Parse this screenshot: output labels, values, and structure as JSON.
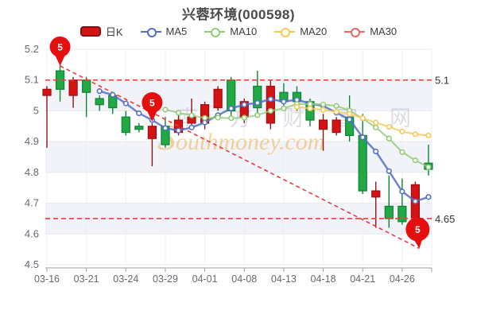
{
  "title": "兴蓉环境(000598)",
  "legend": [
    {
      "label": "日K",
      "type": "candle",
      "color": "#d21414",
      "border": "#8f0b0b"
    },
    {
      "label": "MA5",
      "type": "line",
      "color": "#5470c6"
    },
    {
      "label": "MA10",
      "type": "line",
      "color": "#91cc75"
    },
    {
      "label": "MA20",
      "type": "line",
      "color": "#fac858"
    },
    {
      "label": "MA30",
      "type": "line",
      "color": "#ee6666"
    }
  ],
  "watermark": {
    "line1": "南方财富网",
    "line2": "Southmoney.com"
  },
  "chart_data": {
    "type": "candlestick",
    "ylim": [
      4.5,
      5.2
    ],
    "y_axis_labels": [
      "5.2",
      "5.1",
      "5",
      "4.9",
      "4.8",
      "4.7",
      "4.6",
      "4.5"
    ],
    "y_ticks": [
      5.2,
      5.1,
      5.0,
      4.9,
      4.8,
      4.7,
      4.6,
      4.5
    ],
    "x_labels": [
      "03-16",
      "03-21",
      "03-24",
      "03-29",
      "04-01",
      "04-08",
      "04-13",
      "04-18",
      "04-21",
      "04-26"
    ],
    "label_indices": [
      0,
      3,
      6,
      9,
      12,
      15,
      18,
      21,
      24,
      27
    ],
    "up_color": "#d21414",
    "up_border": "#a00d0d",
    "up_wick": "#8c1616",
    "down_color": "#22a845",
    "down_border": "#0d8334",
    "down_wick": "#0d8334",
    "candles": [
      {
        "date": "03-16",
        "o": 5.05,
        "h": 5.08,
        "l": 4.88,
        "c": 5.07
      },
      {
        "date": "03-17",
        "o": 5.13,
        "h": 5.15,
        "l": 5.03,
        "c": 5.07
      },
      {
        "date": "03-18",
        "o": 5.05,
        "h": 5.11,
        "l": 5.01,
        "c": 5.1
      },
      {
        "date": "03-21",
        "o": 5.1,
        "h": 5.11,
        "l": 4.98,
        "c": 5.06
      },
      {
        "date": "03-22",
        "o": 5.04,
        "h": 5.05,
        "l": 5.0,
        "c": 5.02
      },
      {
        "date": "03-23",
        "o": 5.05,
        "h": 5.06,
        "l": 4.99,
        "c": 5.01
      },
      {
        "date": "03-24",
        "o": 4.98,
        "h": 5.0,
        "l": 4.92,
        "c": 4.93
      },
      {
        "date": "03-25",
        "o": 4.95,
        "h": 4.96,
        "l": 4.93,
        "c": 4.94
      },
      {
        "date": "03-28",
        "o": 4.91,
        "h": 4.96,
        "l": 4.82,
        "c": 4.95
      },
      {
        "date": "03-29",
        "o": 4.95,
        "h": 4.98,
        "l": 4.88,
        "c": 4.89
      },
      {
        "date": "03-30",
        "o": 4.93,
        "h": 5.0,
        "l": 4.92,
        "c": 4.97
      },
      {
        "date": "03-31",
        "o": 4.96,
        "h": 5.04,
        "l": 4.95,
        "c": 4.98
      },
      {
        "date": "04-01",
        "o": 4.96,
        "h": 5.03,
        "l": 4.94,
        "c": 5.02
      },
      {
        "date": "04-06",
        "o": 5.01,
        "h": 5.08,
        "l": 5.0,
        "c": 5.07
      },
      {
        "date": "04-07",
        "o": 5.1,
        "h": 5.11,
        "l": 4.98,
        "c": 5.0
      },
      {
        "date": "04-08",
        "o": 4.98,
        "h": 5.04,
        "l": 4.96,
        "c": 5.03
      },
      {
        "date": "04-11",
        "o": 5.08,
        "h": 5.13,
        "l": 4.98,
        "c": 5.01
      },
      {
        "date": "04-12",
        "o": 4.96,
        "h": 5.1,
        "l": 4.94,
        "c": 5.08
      },
      {
        "date": "04-13",
        "o": 5.06,
        "h": 5.09,
        "l": 5.0,
        "c": 5.03
      },
      {
        "date": "04-14",
        "o": 5.06,
        "h": 5.08,
        "l": 5.0,
        "c": 5.03
      },
      {
        "date": "04-15",
        "o": 5.03,
        "h": 5.04,
        "l": 4.95,
        "c": 4.97
      },
      {
        "date": "04-18",
        "o": 4.94,
        "h": 4.99,
        "l": 4.87,
        "c": 4.97
      },
      {
        "date": "04-19",
        "o": 4.93,
        "h": 4.98,
        "l": 4.92,
        "c": 4.97
      },
      {
        "date": "04-20",
        "o": 4.98,
        "h": 5.05,
        "l": 4.9,
        "c": 4.92
      },
      {
        "date": "04-21",
        "o": 4.92,
        "h": 4.99,
        "l": 4.73,
        "c": 4.74
      },
      {
        "date": "04-22",
        "o": 4.72,
        "h": 4.77,
        "l": 4.62,
        "c": 4.74
      },
      {
        "date": "04-25",
        "o": 4.69,
        "h": 4.79,
        "l": 4.62,
        "c": 4.65
      },
      {
        "date": "04-26",
        "o": 4.69,
        "h": 4.78,
        "l": 4.63,
        "c": 4.64
      },
      {
        "date": "04-27",
        "o": 4.65,
        "h": 4.77,
        "l": 4.6,
        "c": 4.76
      },
      {
        "date": "04-28",
        "o": 4.83,
        "h": 4.89,
        "l": 4.79,
        "c": 4.81
      }
    ],
    "series": [
      {
        "name": "MA5",
        "color": "#5470c6",
        "width": 2.5,
        "values": [
          null,
          null,
          null,
          null,
          5.064,
          5.052,
          5.024,
          4.992,
          4.97,
          4.944,
          4.936,
          4.946,
          4.962,
          4.986,
          5.008,
          5.02,
          5.026,
          5.038,
          5.03,
          5.036,
          5.024,
          5.016,
          4.994,
          4.972,
          4.914,
          4.868,
          4.804,
          4.738,
          4.706,
          4.72
        ]
      },
      {
        "name": "MA10",
        "color": "#91cc75",
        "width": 2,
        "values": [
          null,
          null,
          null,
          null,
          null,
          null,
          null,
          null,
          null,
          5.004,
          4.994,
          4.985,
          4.977,
          4.978,
          4.976,
          4.978,
          4.986,
          5.0,
          5.008,
          5.022,
          5.022,
          5.021,
          5.016,
          5.001,
          4.975,
          4.946,
          4.91,
          4.866,
          4.839,
          4.817
        ]
      },
      {
        "name": "MA20",
        "color": "#fac858",
        "width": 2,
        "values": [
          null,
          null,
          null,
          null,
          null,
          null,
          null,
          null,
          null,
          null,
          null,
          null,
          null,
          null,
          null,
          null,
          null,
          null,
          null,
          5.013,
          5.008,
          5.003,
          4.997,
          4.99,
          4.976,
          4.962,
          4.948,
          4.933,
          4.924,
          4.92
        ]
      },
      {
        "name": "MA30",
        "color": "#ee6666",
        "width": 2,
        "values": [
          null,
          null,
          null,
          null,
          null,
          null,
          null,
          null,
          null,
          null,
          null,
          null,
          null,
          null,
          null,
          null,
          null,
          null,
          null,
          null,
          null,
          null,
          null,
          null,
          null,
          null,
          null,
          null,
          null,
          null
        ]
      }
    ],
    "ref_lines": [
      {
        "price": 5.1,
        "label": "5.1"
      },
      {
        "price": 4.65,
        "label": "4.65"
      }
    ],
    "trend_line": {
      "x1_index": 1,
      "y1_price": 5.146,
      "x2_index": 28.3,
      "y2_price": 4.553
    },
    "markers": [
      {
        "label": "5",
        "tip_index": 1,
        "tip_price": 5.146,
        "r": 13,
        "dx": 0
      },
      {
        "label": "5",
        "tip_index": 8,
        "tip_price": 4.965,
        "r": 13,
        "dx": 0
      },
      {
        "label": "5",
        "tip_index": 28.3,
        "tip_price": 4.553,
        "r": 15,
        "dx": -2
      }
    ],
    "marker_color": "#e60f0f",
    "dash_color": "#ee3a3a"
  }
}
